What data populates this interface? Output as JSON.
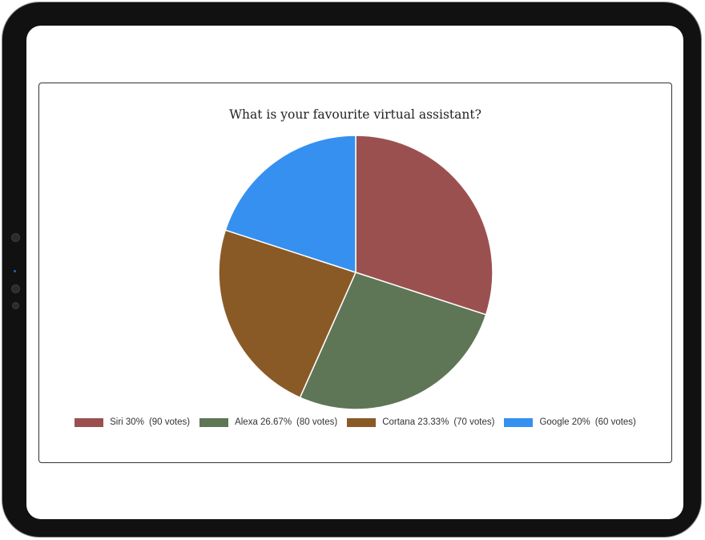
{
  "chart_data": {
    "type": "pie",
    "title": "What is your favourite virtual assistant?",
    "categories": [
      "Siri",
      "Alexa",
      "Cortana",
      "Google"
    ],
    "values": [
      90,
      80,
      70,
      60
    ],
    "percentages": [
      "30%",
      "26.67%",
      "23.33%",
      "20%"
    ],
    "colors": [
      "#9b5050",
      "#5e7656",
      "#8a5a26",
      "#3590f0"
    ],
    "legend": [
      {
        "label": "Siri 30%",
        "detail": "(90 votes)",
        "color": "#9b5050"
      },
      {
        "label": "Alexa 26.67%",
        "detail": "(80 votes)",
        "color": "#5e7656"
      },
      {
        "label": "Cortana 23.33%",
        "detail": "(70 votes)",
        "color": "#8a5a26"
      },
      {
        "label": "Google 20%",
        "detail": "(60 votes)",
        "color": "#3590f0"
      }
    ],
    "legend_position": "bottom",
    "start_angle": "12 o'clock, clockwise"
  }
}
